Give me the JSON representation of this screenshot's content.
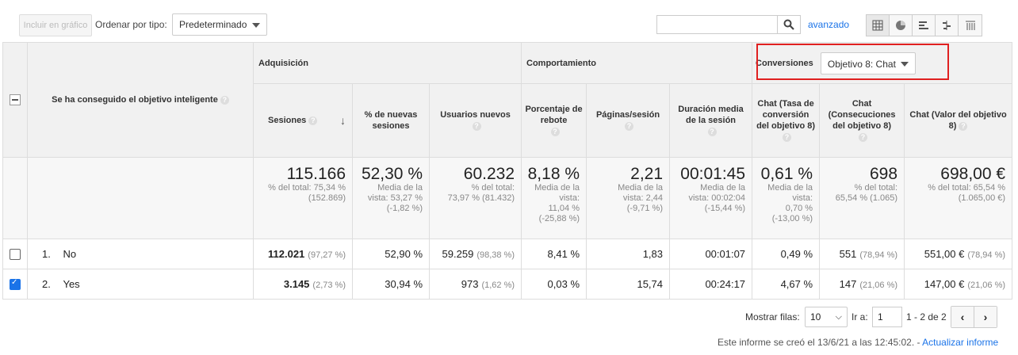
{
  "toolbar": {
    "plot_label": "Incluir en gráfico",
    "sort_label": "Ordenar por tipo:",
    "sort_value": "Predeterminado",
    "search_placeholder": "",
    "advanced_label": "avanzado",
    "view_icons": [
      "table-view-icon",
      "pie-view-icon",
      "bar-view-icon",
      "comparison-view-icon",
      "pivot-view-icon"
    ]
  },
  "table": {
    "dimension_header": "Se ha conseguido el objetivo inteligente",
    "groups": {
      "acquisition": "Adquisición",
      "behavior": "Comportamiento",
      "conversions": "Conversiones",
      "goal_select": "Objetivo 8: Chat"
    },
    "columns": [
      "Sesiones",
      "% de nuevas sesiones",
      "Usuarios nuevos",
      "Porcentaje de rebote",
      "Páginas/sesión",
      "Duración media de la sesión",
      "Chat (Tasa de conversión del objetivo 8)",
      "Chat (Consecuciones del objetivo 8)",
      "Chat (Valor del objetivo 8)"
    ],
    "totals": [
      {
        "value": "115.166",
        "sub1": "% del total: 75,34 %",
        "sub2": "(152.869)"
      },
      {
        "value": "52,30 %",
        "sub1": "Media de la",
        "sub2": "vista: 53,27 %",
        "sub3": "(-1,82 %)"
      },
      {
        "value": "60.232",
        "sub1": "% del total:",
        "sub2": "73,97 % (81.432)"
      },
      {
        "value": "8,18 %",
        "sub1": "Media de la",
        "sub2": "vista:",
        "sub3": "11,04 %",
        "sub4": "(-25,88 %)"
      },
      {
        "value": "2,21",
        "sub1": "Media de la",
        "sub2": "vista: 2,44",
        "sub3": "(-9,71 %)"
      },
      {
        "value": "00:01:45",
        "sub1": "Media de la",
        "sub2": "vista: 00:02:04",
        "sub3": "(-15,44 %)"
      },
      {
        "value": "0,61 %",
        "sub1": "Media de la",
        "sub2": "vista:",
        "sub3": "0,70 %",
        "sub4": "(-13,00 %)"
      },
      {
        "value": "698",
        "sub1": "% del total:",
        "sub2": "65,54 % (1.065)"
      },
      {
        "value": "698,00 €",
        "sub1": "% del total: 65,54 %",
        "sub2": "(1.065,00 €)"
      }
    ],
    "rows": [
      {
        "index": "1.",
        "label": "No",
        "checked": false,
        "sessions": "112.021",
        "sessions_pct": "(97,27 %)",
        "new_sessions": "52,90 %",
        "new_users": "59.259",
        "new_users_pct": "(98,38 %)",
        "bounce": "8,41 %",
        "pages": "1,83",
        "duration": "00:01:07",
        "conv_rate": "0,49 %",
        "completions": "551",
        "completions_pct": "(78,94 %)",
        "value": "551,00 €",
        "value_pct": "(78,94 %)"
      },
      {
        "index": "2.",
        "label": "Yes",
        "checked": true,
        "sessions": "3.145",
        "sessions_pct": "(2,73 %)",
        "new_sessions": "30,94 %",
        "new_users": "973",
        "new_users_pct": "(1,62 %)",
        "bounce": "0,03 %",
        "pages": "15,74",
        "duration": "00:24:17",
        "conv_rate": "4,67 %",
        "completions": "147",
        "completions_pct": "(21,06 %)",
        "value": "147,00 €",
        "value_pct": "(21,06 %)"
      }
    ]
  },
  "footer": {
    "rows_label": "Mostrar filas:",
    "rows_value": "10",
    "goto_label": "Ir a:",
    "goto_value": "1",
    "range": "1 - 2 de 2",
    "created_text": "Este informe se creó el 13/6/21 a las 12:45:02. -",
    "update_link": "Actualizar informe"
  },
  "colors": {
    "link": "#1a73e8",
    "highlight": "#e02020",
    "header_bg": "#f1f1f1"
  }
}
